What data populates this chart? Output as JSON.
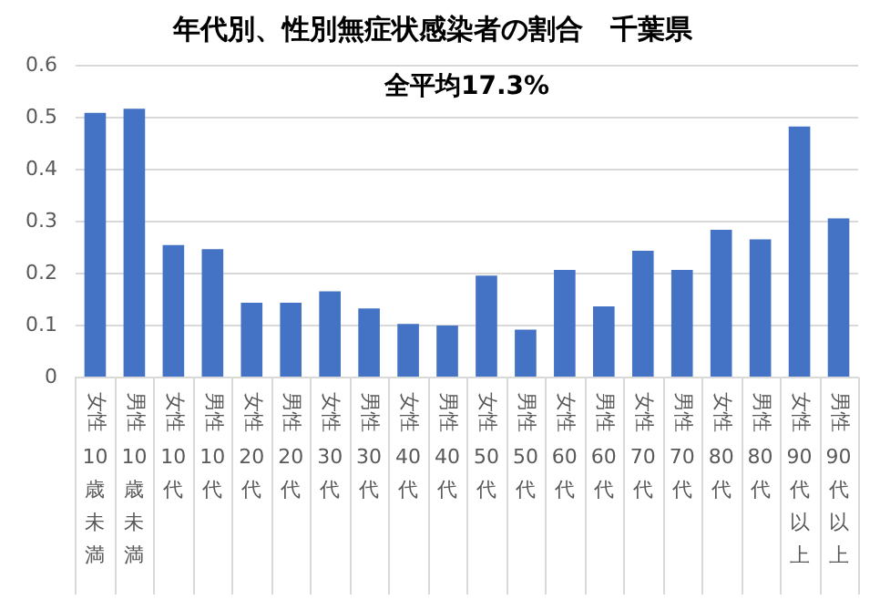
{
  "chart_data": {
    "type": "bar",
    "title": "年代別、性別無症状感染者の割合　千葉県",
    "subtitle": "全平均17.3%",
    "categories": [
      "女性 10歳未満",
      "男性 10歳未満",
      "女性 10代",
      "男性 10代",
      "女性 20代",
      "男性 20代",
      "女性 30代",
      "男性 30代",
      "女性 40代",
      "男性 40代",
      "女性 50代",
      "男性 50代",
      "女性 60代",
      "男性 60代",
      "女性 70代",
      "男性 70代",
      "女性 80代",
      "男性 80代",
      "女性 90代以上",
      "男性 90代以上"
    ],
    "values": [
      0.509,
      0.517,
      0.255,
      0.247,
      0.144,
      0.144,
      0.166,
      0.133,
      0.103,
      0.1,
      0.196,
      0.092,
      0.207,
      0.137,
      0.244,
      0.207,
      0.284,
      0.266,
      0.483,
      0.306
    ],
    "color": "#4472c4",
    "ylim": [
      0,
      0.6
    ],
    "yticks": [
      0,
      0.1,
      0.2,
      0.3,
      0.4,
      0.5,
      0.6
    ],
    "grid": "y"
  }
}
